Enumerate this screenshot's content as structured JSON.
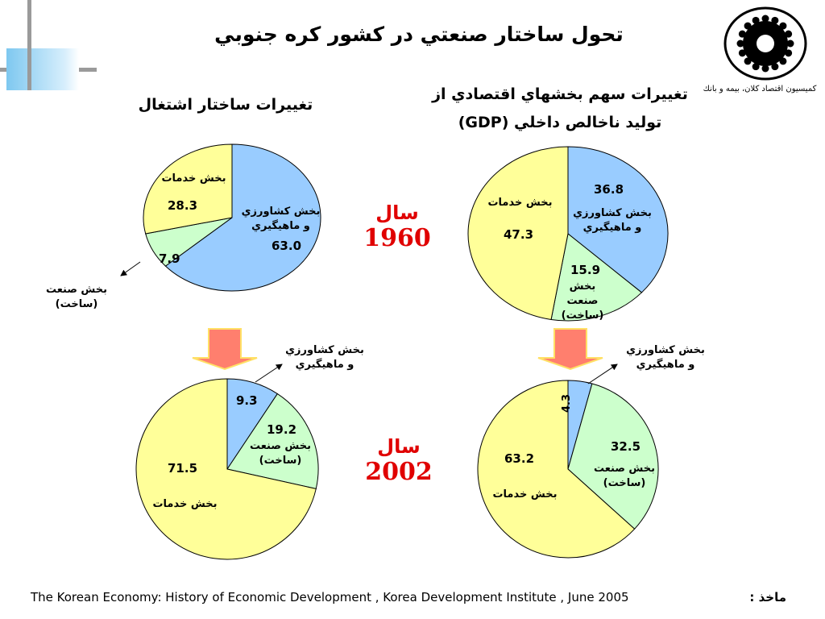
{
  "slide": {
    "title": "تحول ساختار صنعتي در كشور كره جنوبي",
    "org_text": "كميسيون اقتصاد كلان، بيمه و بانك",
    "source_label": "ماخذ :",
    "source_text": "The Korean Economy: History of Economic Development , Korea Development Institute , June 2005",
    "gdp_title_line1": "تغييرات سهم بخشهاي اقتصادي از",
    "gdp_title_line2": "توليد ناخالص داخلي (GDP)",
    "emp_title": "تغييرات ساختار اشتغال",
    "year1_label": "سال",
    "year1": "1960",
    "year2_label": "سال",
    "year2": "2002",
    "colors": {
      "agri": "#99ccff",
      "ind": "#ccffcc",
      "serv": "#ffff99",
      "arrow": "#ff7f6e",
      "year": "#e00000"
    }
  },
  "chart_data": [
    {
      "type": "pie",
      "title": "تغييرات سهم بخشهاي اقتصادي از توليد ناخالص داخلي (GDP)",
      "year": "1960",
      "slices": [
        {
          "label": "بخش كشاورزي و ماهيگيري",
          "value": 36.8,
          "color": "#99ccff"
        },
        {
          "label": "بخش صنعت (ساخت)",
          "value": 15.9,
          "color": "#ccffcc"
        },
        {
          "label": "بخش خدمات",
          "value": 47.3,
          "color": "#ffff99"
        }
      ]
    },
    {
      "type": "pie",
      "title": "تغييرات ساختار اشتغال",
      "year": "1960",
      "slices": [
        {
          "label": "بخش كشاورزي و ماهيگيري",
          "value": 63.0,
          "color": "#99ccff"
        },
        {
          "label": "بخش صنعت (ساخت)",
          "value": 7.9,
          "color": "#ccffcc"
        },
        {
          "label": "بخش خدمات",
          "value": 28.3,
          "color": "#ffff99"
        }
      ]
    },
    {
      "type": "pie",
      "title": "تغييرات سهم بخشهاي اقتصادي از توليد ناخالص داخلي (GDP)",
      "year": "2002",
      "slices": [
        {
          "label": "بخش كشاورزي و ماهيگيري",
          "value": 4.3,
          "color": "#99ccff"
        },
        {
          "label": "بخش صنعت (ساخت)",
          "value": 32.5,
          "color": "#ccffcc"
        },
        {
          "label": "بخش خدمات",
          "value": 63.2,
          "color": "#ffff99"
        }
      ]
    },
    {
      "type": "pie",
      "title": "تغييرات ساختار اشتغال",
      "year": "2002",
      "slices": [
        {
          "label": "بخش كشاورزي و ماهيگيري",
          "value": 9.3,
          "color": "#99ccff"
        },
        {
          "label": "بخش صنعت (ساخت)",
          "value": 19.2,
          "color": "#ccffcc"
        },
        {
          "label": "بخش خدمات",
          "value": 71.5,
          "color": "#ffff99"
        }
      ]
    }
  ],
  "labels": {
    "gdp1960": {
      "agri_val": "36.8",
      "agri_l1": "بخش كشاورزي",
      "agri_l2": "و ماهيگيري",
      "ind_val": "15.9",
      "ind_l1": "بخش صنعت",
      "ind_l2": "(ساخت)",
      "serv_val": "47.3",
      "serv_l": "بخش خدمات"
    },
    "emp1960": {
      "agri_val": "63.0",
      "agri_l1": "بخش كشاورزي",
      "agri_l2": "و ماهيگيري",
      "ind_val": "7.9",
      "ind_l": "بخش صنعت (ساخت)",
      "serv_val": "28.3",
      "serv_l": "بخش خدمات"
    },
    "gdp2002": {
      "agri_val": "4.3",
      "agri_l1": "بخش كشاورزي",
      "agri_l2": "و ماهيگيري",
      "ind_val": "32.5",
      "ind_l1": "بخش صنعت",
      "ind_l2": "(ساخت)",
      "serv_val": "63.2",
      "serv_l": "بخش خدمات"
    },
    "emp2002": {
      "agri_val": "9.3",
      "agri_l1": "بخش كشاورزي",
      "agri_l2": "و ماهيگيري",
      "ind_val": "19.2",
      "ind_l1": "بخش صنعت",
      "ind_l2": "(ساخت)",
      "serv_val": "71.5",
      "serv_l": "بخش خدمات"
    }
  }
}
